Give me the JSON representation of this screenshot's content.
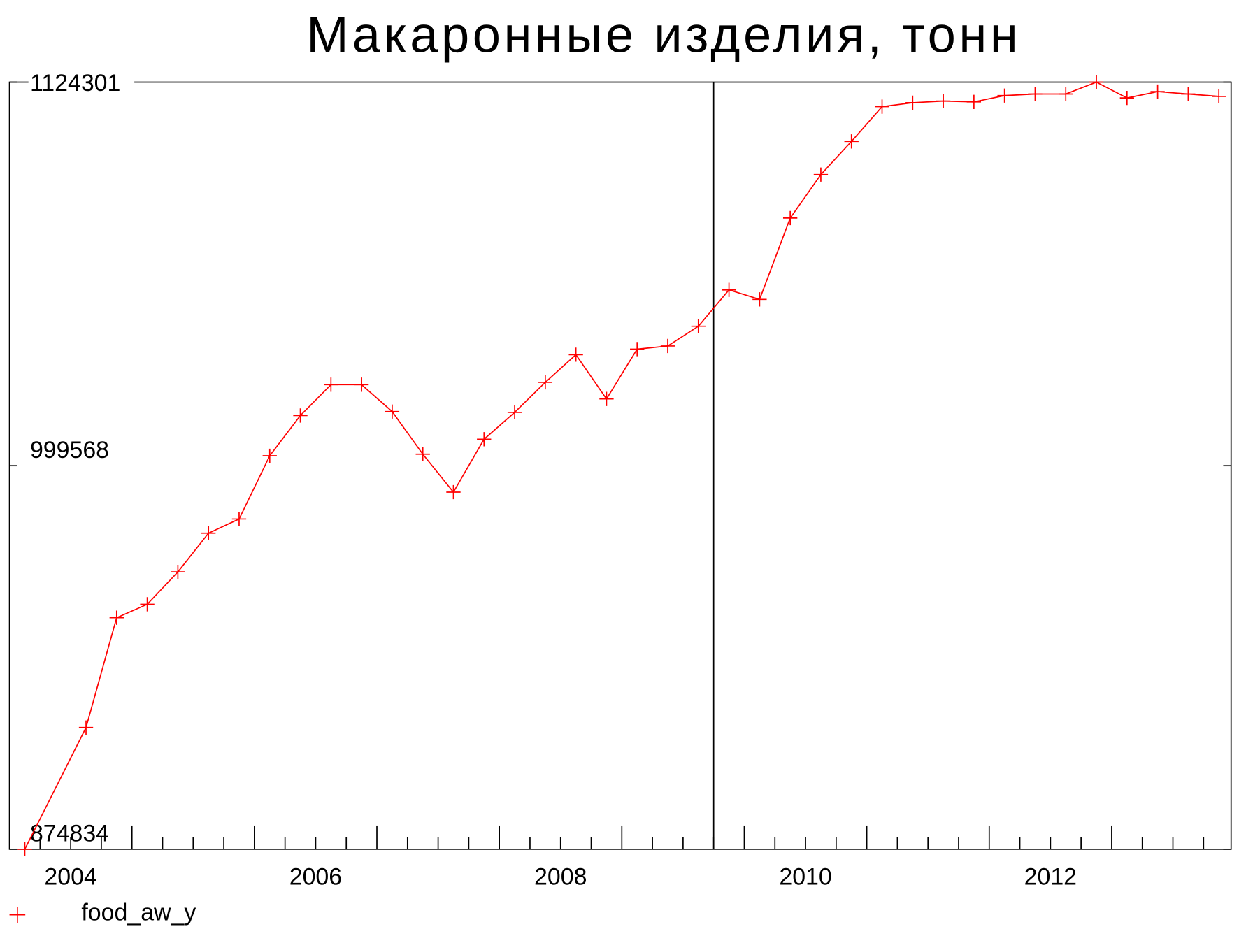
{
  "chart_data": {
    "type": "line",
    "title": "Макаронные изделия, тонн",
    "x": [
      2004.125,
      2004.625,
      2004.875,
      2005.125,
      2005.375,
      2005.625,
      2005.875,
      2006.125,
      2006.375,
      2006.625,
      2006.875,
      2007.125,
      2007.375,
      2007.625,
      2007.875,
      2008.125,
      2008.375,
      2008.625,
      2008.875,
      2009.125,
      2009.375,
      2009.625,
      2009.875,
      2010.125,
      2010.375,
      2010.625,
      2010.875,
      2011.125,
      2011.375,
      2011.625,
      2011.875,
      2012.125,
      2012.375,
      2012.625,
      2012.875,
      2013.125,
      2013.375,
      2013.625,
      2013.875
    ],
    "series": [
      {
        "name": "food_aw_y",
        "color": "#ff0000",
        "values": [
          874834,
          914411,
          950123,
          954490,
          965023,
          977611,
          982235,
          1002787,
          1015889,
          1025908,
          1025908,
          1017174,
          1003301,
          990970,
          1008182,
          1016917,
          1026679,
          1035670,
          1021284,
          1037469,
          1038496,
          1044919,
          1056736,
          1053653,
          1080114,
          1094244,
          1105033,
          1116337,
          1117622,
          1118135,
          1117878,
          1119934,
          1120447,
          1120447,
          1124301,
          1119163,
          1121218,
          1120447,
          1119677
        ]
      }
    ],
    "xlim": [
      2004,
      2013.975
    ],
    "ylim": [
      874834,
      1124301
    ],
    "yticks": [
      874834,
      999568,
      1124301
    ],
    "xticks": [
      {
        "value": 2004.5,
        "label": "2004"
      },
      {
        "value": 2006.5,
        "label": "2006"
      },
      {
        "value": 2008.5,
        "label": "2008"
      },
      {
        "value": 2010.5,
        "label": "2010"
      },
      {
        "value": 2012.5,
        "label": "2012"
      }
    ],
    "xticks_major": [
      2005,
      2006,
      2007,
      2008,
      2009,
      2010,
      2011,
      2012,
      2013
    ],
    "xticks_minor": [
      2004.25,
      2004.5,
      2004.75,
      2005.25,
      2005.5,
      2005.75,
      2006.25,
      2006.5,
      2006.75,
      2007.25,
      2007.5,
      2007.75,
      2008.25,
      2008.5,
      2008.75,
      2009.25,
      2009.5,
      2009.75,
      2010.25,
      2010.5,
      2010.75,
      2011.25,
      2011.5,
      2011.75,
      2012.25,
      2012.5,
      2012.75,
      2013.25,
      2013.5,
      2013.75
    ],
    "vline": 2009.75,
    "legend": "bottom-left"
  }
}
